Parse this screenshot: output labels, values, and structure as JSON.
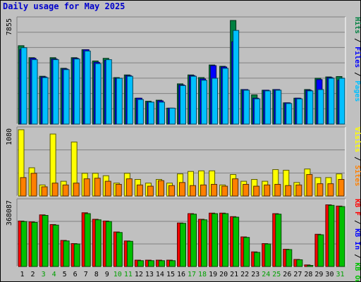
{
  "chart_data": {
    "type": "bar",
    "title": "Daily usage for May 2025",
    "days": [
      "1",
      "2",
      "3",
      "4",
      "5",
      "6",
      "7",
      "8",
      "9",
      "10",
      "11",
      "12",
      "13",
      "14",
      "15",
      "16",
      "17",
      "18",
      "19",
      "20",
      "21",
      "22",
      "23",
      "24",
      "25",
      "26",
      "27",
      "28",
      "29",
      "30",
      "31"
    ],
    "weekend_days": [
      3,
      4,
      10,
      11,
      17,
      18,
      24,
      25,
      31
    ],
    "panels": [
      {
        "max_label": "7855",
        "ymax": 7855,
        "legend": [
          {
            "text": "Hits",
            "color": "#008040"
          },
          {
            "text": " / ",
            "color": "#000000"
          },
          {
            "text": "Files",
            "color": "#0000ff"
          },
          {
            "text": " / ",
            "color": "#000000"
          },
          {
            "text": "Pages",
            "color": "#00c0ff"
          }
        ],
        "series": [
          {
            "name": "Hits",
            "color": "#008040",
            "values": [
              5900,
              5000,
              3600,
              5000,
              4200,
              5000,
              5600,
              4750,
              4950,
              3500,
              3700,
              1950,
              1720,
              1800,
              1200,
              3030,
              3700,
              3500,
              4450,
              4350,
              7800,
              2600,
              2200,
              2550,
              2600,
              1600,
              1950,
              2600,
              3450,
              3550,
              3580
            ]
          },
          {
            "name": "Files",
            "color": "#0000ff",
            "values": [
              5600,
              4950,
              3550,
              4900,
              4150,
              4950,
              5600,
              4650,
              4800,
              3450,
              3650,
              1950,
              1650,
              1750,
              1200,
              2950,
              3650,
              3400,
              4400,
              4300,
              6200,
              2600,
              1950,
              2550,
              2600,
              1600,
              1950,
              2550,
              3350,
              3500,
              3300
            ]
          },
          {
            "name": "Pages",
            "color": "#00c0ff",
            "values": [
              5750,
              4850,
              3500,
              4850,
              4100,
              4900,
              5500,
              4550,
              4850,
              3450,
              3600,
              1850,
              1650,
              1650,
              1200,
              2900,
              3600,
              3300,
              3450,
              4200,
              7050,
              2550,
              1900,
              2500,
              2550,
              1550,
              1900,
              2500,
              2600,
              3450,
              3450
            ]
          }
        ]
      },
      {
        "max_label": "1080",
        "ymax": 1080,
        "legend": [
          {
            "text": "Visits",
            "color": "#ffff00"
          },
          {
            "text": " / ",
            "color": "#000000"
          },
          {
            "text": "Sites",
            "color": "#ff8000"
          }
        ],
        "series": [
          {
            "name": "Visits",
            "color": "#ffff00",
            "values": [
              1080,
              460,
              180,
              1010,
              240,
              880,
              370,
              370,
              330,
              210,
              370,
              270,
              210,
              270,
              210,
              360,
              400,
              410,
              410,
              180,
              350,
              240,
              270,
              240,
              430,
              420,
              220,
              440,
              300,
              300,
              360
            ]
          },
          {
            "name": "Sites",
            "color": "#ff8000",
            "values": [
              300,
              370,
              150,
              210,
              180,
              210,
              280,
              290,
              240,
              190,
              280,
              180,
              160,
              250,
              170,
              220,
              170,
              180,
              190,
              160,
              280,
              190,
              160,
              180,
              190,
              170,
              180,
              350,
              200,
              200,
              270
            ]
          }
        ]
      },
      {
        "max_label": "368087",
        "ymax": 368087,
        "legend": [
          {
            "text": "KB F",
            "color": "#ff0000"
          },
          {
            "text": " / ",
            "color": "#000000"
          },
          {
            "text": "KB In",
            "color": "#0000ff"
          },
          {
            "text": " / ",
            "color": "#000000"
          },
          {
            "text": "KB Out",
            "color": "#00c000"
          }
        ],
        "series": [
          {
            "name": "KB F",
            "color": "#ff0000",
            "values": [
              258000,
              253000,
              293000,
              238000,
              148000,
              130000,
              305000,
              268000,
              258000,
              196000,
              145000,
              36000,
              36000,
              36000,
              36000,
              247000,
              300000,
              268000,
              303000,
              303000,
              283000,
              168000,
              83000,
              130000,
              300000,
              98000,
              40000,
              9000,
              183000,
              350000,
              343000
            ]
          },
          {
            "name": "KB In",
            "color": "#0000ff",
            "values": [
              0,
              0,
              0,
              0,
              0,
              0,
              0,
              0,
              0,
              0,
              0,
              0,
              0,
              0,
              0,
              0,
              0,
              0,
              0,
              0,
              0,
              0,
              0,
              0,
              0,
              0,
              0,
              0,
              0,
              0,
              0
            ]
          },
          {
            "name": "KB Out",
            "color": "#00c000",
            "values": [
              255000,
              250000,
              290000,
              235000,
              145000,
              128000,
              300000,
              265000,
              255000,
              193000,
              143000,
              33000,
              33000,
              33000,
              33000,
              245000,
              297000,
              265000,
              300000,
              300000,
              280000,
              165000,
              80000,
              128000,
              297000,
              96000,
              38000,
              6000,
              180000,
              347000,
              340000
            ]
          }
        ]
      }
    ]
  }
}
